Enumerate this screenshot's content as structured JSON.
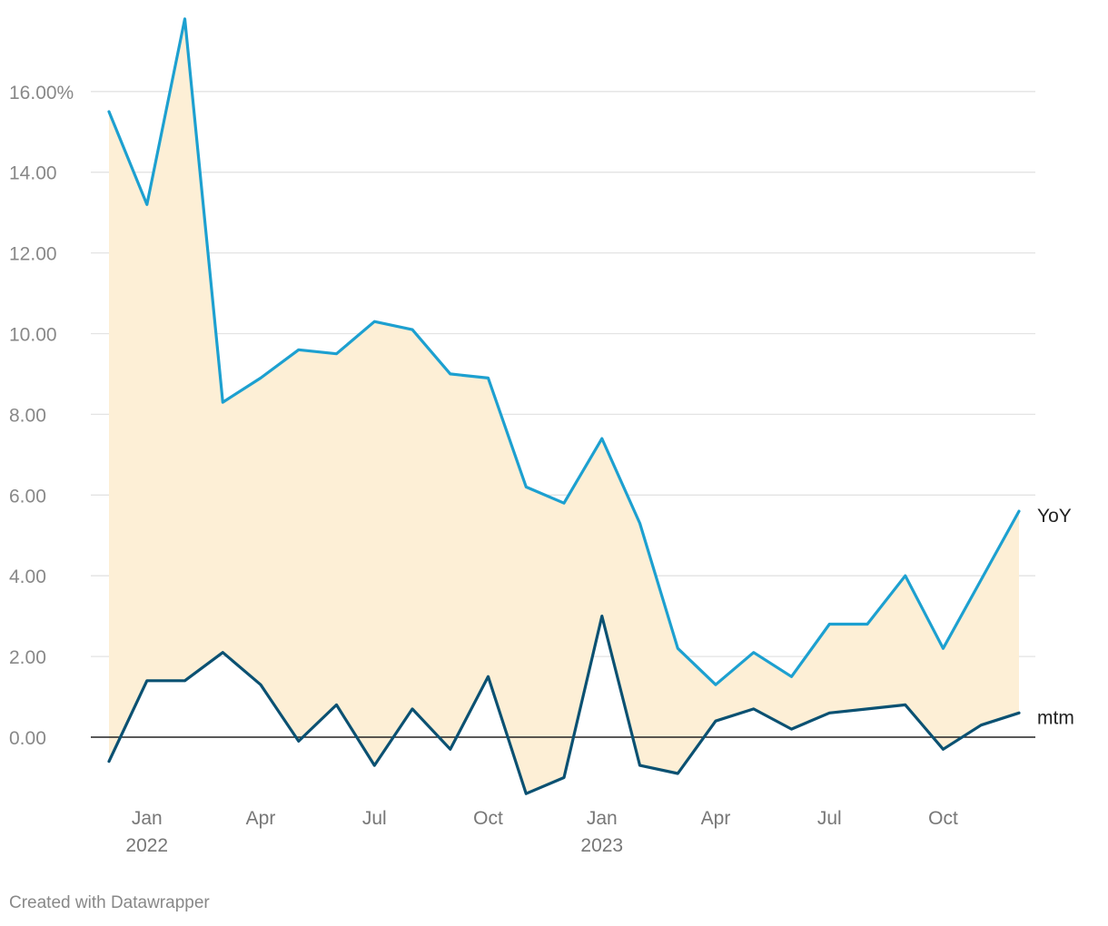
{
  "chart_data": {
    "type": "line",
    "x": [
      "2021-12",
      "2022-01",
      "2022-02",
      "2022-03",
      "2022-04",
      "2022-05",
      "2022-06",
      "2022-07",
      "2022-08",
      "2022-09",
      "2022-10",
      "2022-11",
      "2022-12",
      "2023-01",
      "2023-02",
      "2023-03",
      "2023-04",
      "2023-05",
      "2023-06",
      "2023-07",
      "2023-08",
      "2023-09",
      "2023-10",
      "2023-11",
      "2023-12"
    ],
    "series": [
      {
        "name": "YoY",
        "color": "#1da0d0",
        "values": [
          15.5,
          13.2,
          17.8,
          8.3,
          8.9,
          9.6,
          9.5,
          10.3,
          10.1,
          9.0,
          8.9,
          6.2,
          5.8,
          7.4,
          5.3,
          2.2,
          1.3,
          2.1,
          1.5,
          2.8,
          2.8,
          4.0,
          2.2,
          3.9,
          5.6
        ]
      },
      {
        "name": "mtm",
        "color": "#0b5172",
        "values": [
          -0.6,
          1.4,
          1.4,
          2.1,
          1.3,
          -0.1,
          0.8,
          -0.7,
          0.7,
          -0.3,
          1.5,
          -1.4,
          -1.0,
          3.0,
          -0.7,
          -0.9,
          0.4,
          0.7,
          0.2,
          0.6,
          0.7,
          0.8,
          -0.3,
          0.3,
          0.6
        ]
      }
    ],
    "fill_between": {
      "color": "#fdefd6",
      "series": [
        "YoY",
        "mtm"
      ]
    },
    "ylim": [
      -1.6,
      18.0
    ],
    "yticks": [
      {
        "value": 0,
        "label": "0.00"
      },
      {
        "value": 2,
        "label": "2.00"
      },
      {
        "value": 4,
        "label": "4.00"
      },
      {
        "value": 6,
        "label": "6.00"
      },
      {
        "value": 8,
        "label": "8.00"
      },
      {
        "value": 10,
        "label": "10.00"
      },
      {
        "value": 12,
        "label": "12.00"
      },
      {
        "value": 14,
        "label": "14.00"
      },
      {
        "value": 16,
        "label": "16.00%"
      }
    ],
    "xticks": [
      {
        "date": "2022-01",
        "label": "Jan",
        "label2": "2022"
      },
      {
        "date": "2022-04",
        "label": "Apr",
        "label2": ""
      },
      {
        "date": "2022-07",
        "label": "Jul",
        "label2": ""
      },
      {
        "date": "2022-10",
        "label": "Oct",
        "label2": ""
      },
      {
        "date": "2023-01",
        "label": "Jan",
        "label2": "2023"
      },
      {
        "date": "2023-04",
        "label": "Apr",
        "label2": ""
      },
      {
        "date": "2023-07",
        "label": "Jul",
        "label2": ""
      },
      {
        "date": "2023-10",
        "label": "Oct",
        "label2": ""
      }
    ],
    "grid": true,
    "gridline_color": "#e3e3e3",
    "zero_line_color": "#222222"
  },
  "footer": {
    "credit": "Created with Datawrapper"
  }
}
